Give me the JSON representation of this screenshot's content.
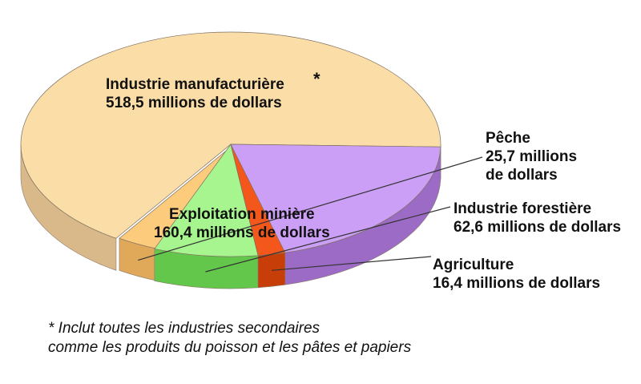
{
  "chart_data": {
    "type": "pie",
    "title": "",
    "slices": [
      {
        "name": "Industrie manufacturière",
        "value": 518.5,
        "value_label": "518,5 millions de dollars",
        "color": "#FBDDA7",
        "side_color": "#D9B98A"
      },
      {
        "name": "Pêche",
        "value": 25.7,
        "value_label_1": "25,7 millions",
        "value_label_2": "de dollars",
        "color": "#FDCB7C",
        "side_color": "#E0A95A"
      },
      {
        "name": "Industrie forestière",
        "value": 62.6,
        "value_label": "62,6 millions de dollars",
        "color": "#A6F58E",
        "side_color": "#63C74C"
      },
      {
        "name": "Agriculture",
        "value": 16.4,
        "value_label": "16,4 millions de dollars",
        "color": "#F4571C",
        "side_color": "#C73E08"
      },
      {
        "name": "Exploitation minière",
        "value": 160.4,
        "value_label": "160,4 millions de dollars",
        "color": "#CB9FF6",
        "side_color": "#9B6BC5"
      }
    ],
    "annotations": {
      "asterisk": "*",
      "footnote_line1": "* Inclut toutes les industries secondaires",
      "footnote_line2": "comme les produits du poisson et les pâtes et papiers"
    },
    "legend": "none"
  }
}
